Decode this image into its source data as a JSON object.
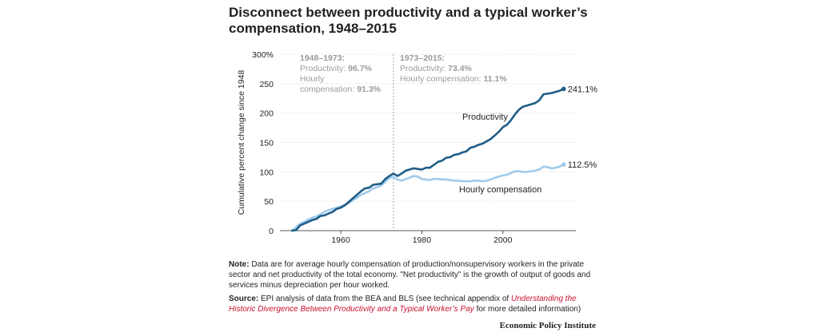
{
  "title": "Disconnect between productivity and a typical worker’s compensation, 1948–2015",
  "chart_data": {
    "type": "line",
    "ylabel": "Cumulative percent change since 1948",
    "xlabel": "",
    "xlim": [
      1945,
      2018
    ],
    "ylim": [
      0,
      300
    ],
    "yticks": [
      {
        "value": 0,
        "label": "0"
      },
      {
        "value": 50,
        "label": "50"
      },
      {
        "value": 100,
        "label": "100"
      },
      {
        "value": 150,
        "label": "150"
      },
      {
        "value": 200,
        "label": "200"
      },
      {
        "value": 250,
        "label": "250"
      },
      {
        "value": 300,
        "label": "300%"
      }
    ],
    "xticks": [
      {
        "value": 1960,
        "label": "1960"
      },
      {
        "value": 1980,
        "label": "1980"
      },
      {
        "value": 2000,
        "label": "2000"
      }
    ],
    "grid": true,
    "divider_year": 1973,
    "annotations": {
      "left": {
        "head": "1948–1973:",
        "prod_label": "Productivity: ",
        "prod_value": "96.7%",
        "comp_label_1": "Hourly",
        "comp_label_2": "compensation: ",
        "comp_value": "91.3%"
      },
      "right": {
        "head": "1973–2015:",
        "prod_label": "Productivity: ",
        "prod_value": "73.4%",
        "comp_label": "Hourly compensation: ",
        "comp_value": "11.1%"
      }
    },
    "series": [
      {
        "name": "Productivity",
        "color": "#1f5c87",
        "end_label": "241.1%",
        "x": [
          1948,
          1949,
          1950,
          1951,
          1952,
          1953,
          1954,
          1955,
          1956,
          1957,
          1958,
          1959,
          1960,
          1961,
          1962,
          1963,
          1964,
          1965,
          1966,
          1967,
          1968,
          1969,
          1970,
          1971,
          1972,
          1973,
          1974,
          1975,
          1976,
          1977,
          1978,
          1979,
          1980,
          1981,
          1982,
          1983,
          1984,
          1985,
          1986,
          1987,
          1988,
          1989,
          1990,
          1991,
          1992,
          1993,
          1994,
          1995,
          1996,
          1997,
          1998,
          1999,
          2000,
          2001,
          2002,
          2003,
          2004,
          2005,
          2006,
          2007,
          2008,
          2009,
          2010,
          2011,
          2012,
          2013,
          2014,
          2015
        ],
        "values": [
          0,
          1,
          9,
          12,
          15,
          18,
          20,
          25,
          26,
          29,
          32,
          37,
          39,
          43,
          49,
          55,
          61,
          67,
          72,
          73,
          78,
          79,
          80,
          88,
          93,
          97,
          93,
          97,
          102,
          104,
          106,
          105,
          104,
          107,
          107,
          112,
          117,
          119,
          124,
          125,
          129,
          130,
          133,
          135,
          141,
          143,
          146,
          148,
          152,
          156,
          162,
          168,
          176,
          180,
          188,
          198,
          206,
          211,
          213,
          215,
          217,
          222,
          232,
          233,
          234,
          236,
          238,
          241.1
        ]
      },
      {
        "name": "Hourly compensation",
        "color": "#9fcbec",
        "end_label": "112.5%",
        "x": [
          1948,
          1949,
          1950,
          1951,
          1952,
          1953,
          1954,
          1955,
          1956,
          1957,
          1958,
          1959,
          1960,
          1961,
          1962,
          1963,
          1964,
          1965,
          1966,
          1967,
          1968,
          1969,
          1970,
          1971,
          1972,
          1973,
          1974,
          1975,
          1976,
          1977,
          1978,
          1979,
          1980,
          1981,
          1982,
          1983,
          1984,
          1985,
          1986,
          1987,
          1988,
          1989,
          1990,
          1991,
          1992,
          1993,
          1994,
          1995,
          1996,
          1997,
          1998,
          1999,
          2000,
          2001,
          2002,
          2003,
          2004,
          2005,
          2006,
          2007,
          2008,
          2009,
          2010,
          2011,
          2012,
          2013,
          2014,
          2015
        ],
        "values": [
          0,
          6,
          12,
          15,
          19,
          22,
          24,
          28,
          32,
          35,
          37,
          39,
          41,
          44,
          47,
          52,
          56,
          61,
          64,
          67,
          72,
          74,
          77,
          83,
          90,
          91,
          87,
          85,
          88,
          90,
          93,
          92,
          88,
          87,
          86,
          88,
          88,
          87,
          87,
          86,
          85,
          85,
          84,
          84,
          84,
          85,
          85,
          84,
          85,
          87,
          90,
          92,
          94,
          95,
          98,
          101,
          101,
          100,
          100,
          101,
          102,
          104,
          109,
          108,
          106,
          107,
          109,
          112.5
        ]
      }
    ]
  },
  "notes": {
    "note_label": "Note:",
    "note_text": " Data are for average hourly compensation of production/nonsupervisory workers in the private sector and net productivity of the total economy. \"Net productivity\" is the growth of output of goods and services minus depreciation per hour worked.",
    "source_label": "Source:",
    "source_text": " EPI analysis of data from the BEA and BLS (see technical appendix of ",
    "source_link": "Understanding the Historic Divergence Between Productivity and a Typical Worker’s Pay",
    "source_tail": " for more detailed information)"
  },
  "org": "Economic Policy Institute"
}
